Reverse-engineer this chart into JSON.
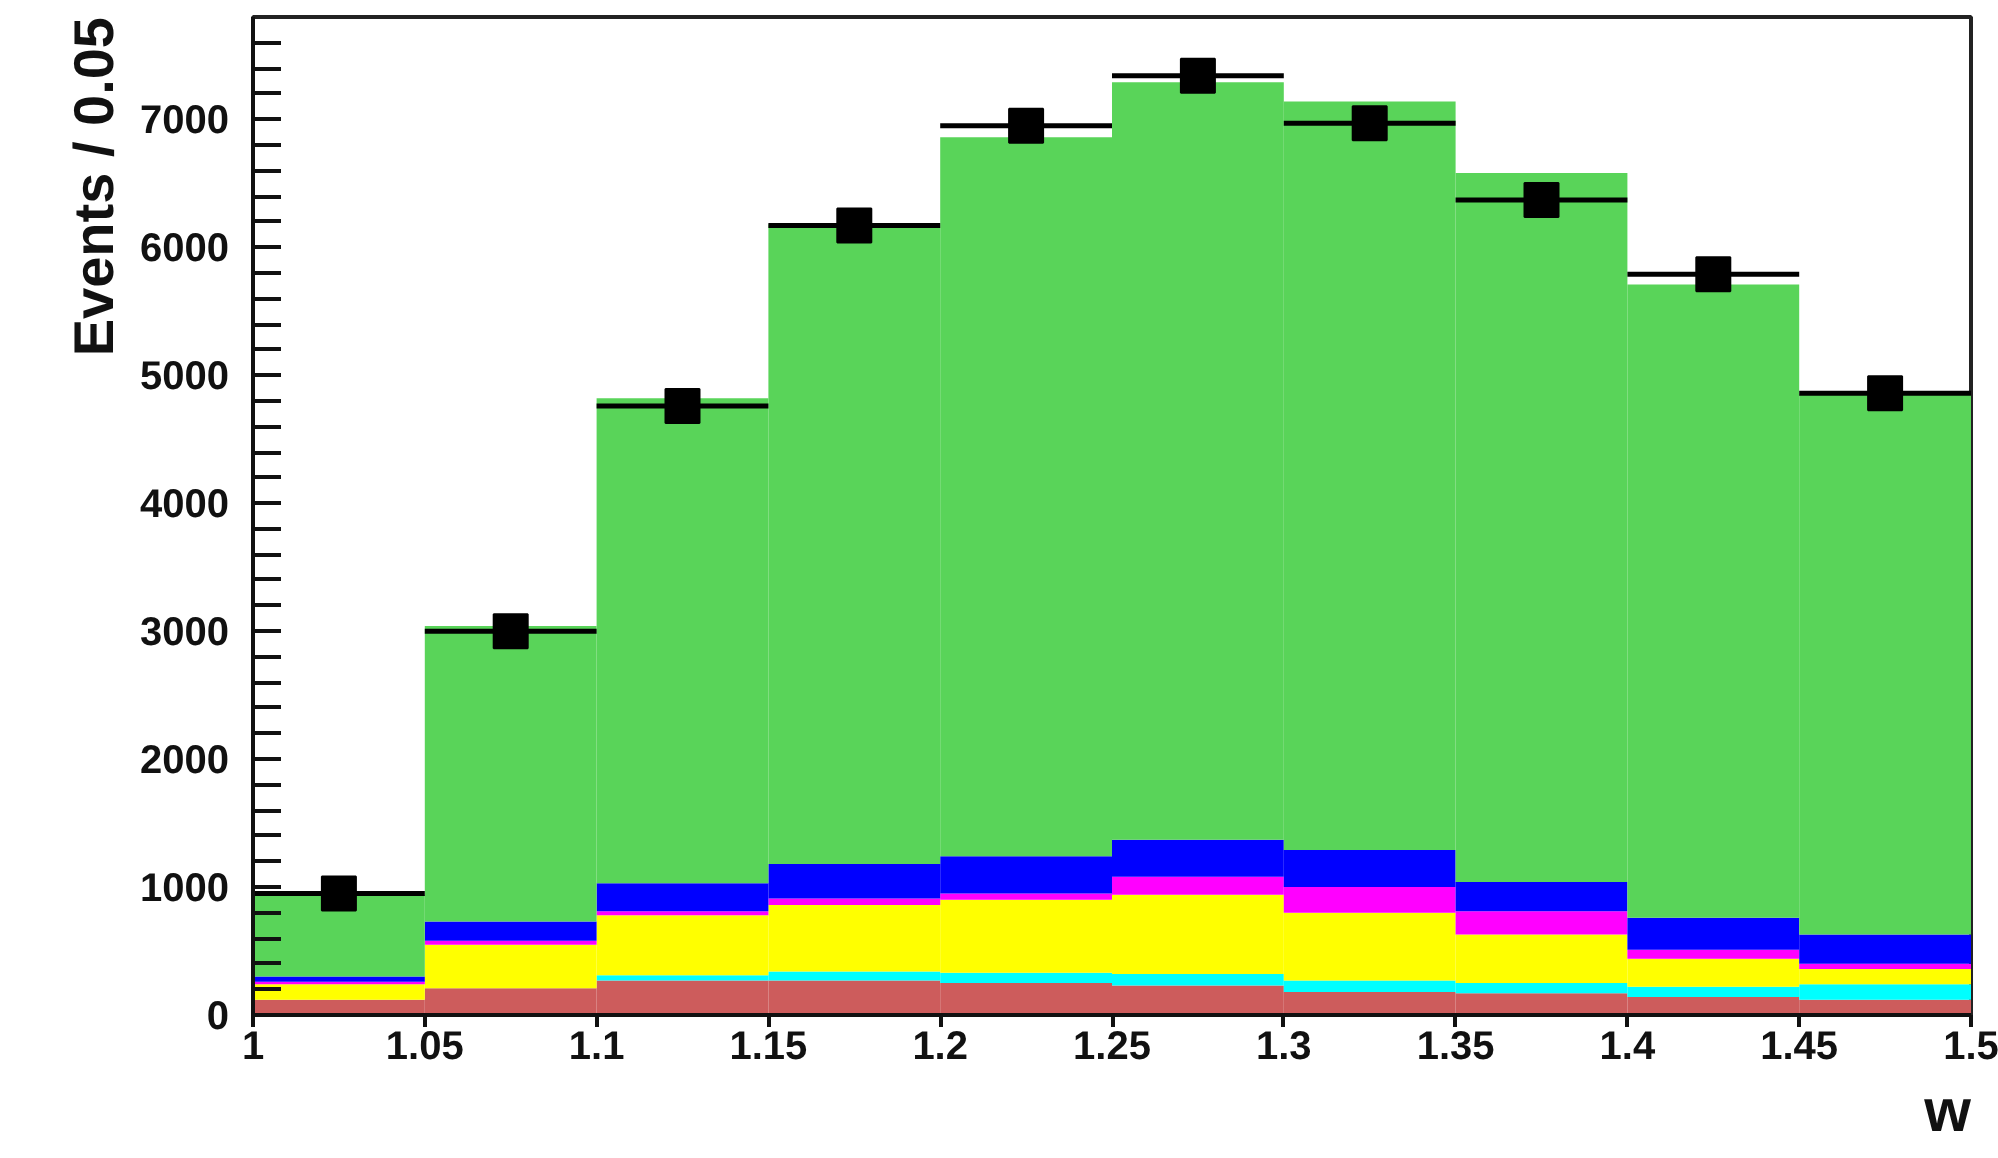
{
  "chart_data": {
    "type": "bar",
    "xlabel": "w",
    "ylabel": "Events / 0.05",
    "stacked": true,
    "x": [
      1.025,
      1.075,
      1.125,
      1.175,
      1.225,
      1.275,
      1.325,
      1.375,
      1.425,
      1.475
    ],
    "series": [
      {
        "color": "#cd5c5c",
        "values": [
          120,
          210,
          270,
          270,
          250,
          230,
          180,
          170,
          140,
          120
        ]
      },
      {
        "color": "#00ffff",
        "values": [
          0,
          0,
          40,
          70,
          80,
          90,
          90,
          80,
          80,
          120
        ]
      },
      {
        "color": "#ffff00",
        "values": [
          120,
          340,
          470,
          520,
          570,
          620,
          530,
          380,
          220,
          120
        ]
      },
      {
        "color": "#ff00ff",
        "values": [
          20,
          30,
          30,
          50,
          50,
          140,
          200,
          180,
          70,
          40
        ]
      },
      {
        "color": "#0000ff",
        "values": [
          40,
          150,
          220,
          270,
          290,
          290,
          290,
          230,
          250,
          230
        ]
      },
      {
        "color": "#59d459",
        "values": [
          640,
          2310,
          3790,
          5000,
          5620,
          5920,
          5850,
          5540,
          4950,
          4220
        ]
      },
      {
        "type": "scatter",
        "color": "#000000",
        "marker": "square",
        "values": [
          950,
          3000,
          4760,
          6170,
          6950,
          7340,
          6970,
          6370,
          5790,
          4860
        ],
        "xerrors": [
          0.025,
          0.025,
          0.025,
          0.025,
          0.025,
          0.025,
          0.025,
          0.025,
          0.025,
          0.025
        ]
      }
    ],
    "xlim": [
      1,
      1.5
    ],
    "ylim": [
      0,
      7800
    ],
    "xticks": [
      1,
      1.05,
      1.1,
      1.15,
      1.2,
      1.25,
      1.3,
      1.35,
      1.4,
      1.45,
      1.5
    ],
    "yticks": [
      0,
      {
        "value": 200,
        "label": null
      },
      {
        "value": 400,
        "label": null
      },
      {
        "value": 600,
        "label": null
      },
      {
        "value": 800,
        "label": null
      },
      1000,
      {
        "value": 1200,
        "label": null
      },
      {
        "value": 1400,
        "label": null
      },
      {
        "value": 1600,
        "label": null
      },
      {
        "value": 1800,
        "label": null
      },
      2000,
      {
        "value": 2200,
        "label": null
      },
      {
        "value": 2400,
        "label": null
      },
      {
        "value": 2600,
        "label": null
      },
      {
        "value": 2800,
        "label": null
      },
      3000,
      {
        "value": 3200,
        "label": null
      },
      {
        "value": 3400,
        "label": null
      },
      {
        "value": 3600,
        "label": null
      },
      {
        "value": 3800,
        "label": null
      },
      4000,
      {
        "value": 4200,
        "label": null
      },
      {
        "value": 4400,
        "label": null
      },
      {
        "value": 4600,
        "label": null
      },
      {
        "value": 4800,
        "label": null
      },
      5000,
      {
        "value": 5200,
        "label": null
      },
      {
        "value": 5400,
        "label": null
      },
      {
        "value": 5600,
        "label": null
      },
      {
        "value": 5800,
        "label": null
      },
      6000,
      {
        "value": 6200,
        "label": null
      },
      {
        "value": 6400,
        "label": null
      },
      {
        "value": 6600,
        "label": null
      },
      {
        "value": 6800,
        "label": null
      },
      7000,
      {
        "value": 7200,
        "label": null
      },
      {
        "value": 7400,
        "label": null
      },
      {
        "value": 7600,
        "label": null
      }
    ]
  }
}
